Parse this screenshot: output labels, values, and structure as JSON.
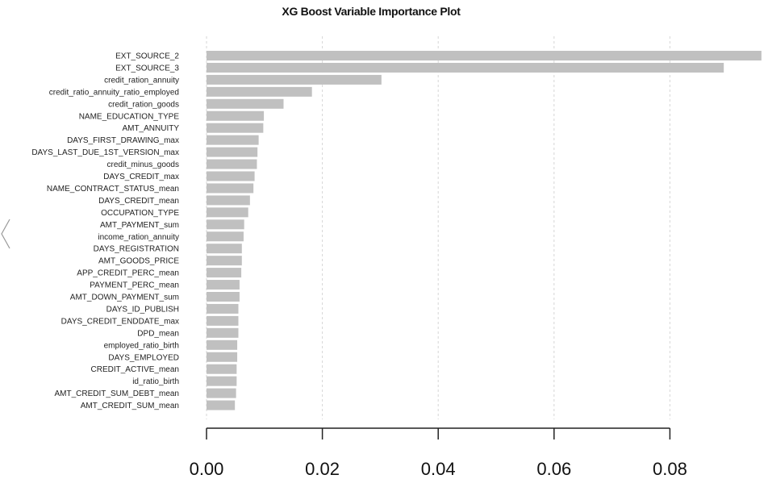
{
  "chart_data": {
    "type": "bar",
    "orientation": "horizontal",
    "title": "XG Boost Variable  Importance Plot",
    "xlabel": "",
    "ylabel": "",
    "xlim": [
      0,
      0.096
    ],
    "x_ticks": [
      "0.00",
      "0.02",
      "0.04",
      "0.06",
      "0.08"
    ],
    "grid": true,
    "bar_color": "#c0c0c0",
    "categories": [
      "EXT_SOURCE_2",
      "EXT_SOURCE_3",
      "credit_ration_annuity",
      "credit_ratio_annuity_ratio_employed",
      "credit_ration_goods",
      "NAME_EDUCATION_TYPE",
      "AMT_ANNUITY",
      "DAYS_FIRST_DRAWING_max",
      "DAYS_LAST_DUE_1ST_VERSION_max",
      "credit_minus_goods",
      "DAYS_CREDIT_max",
      "NAME_CONTRACT_STATUS_mean",
      "DAYS_CREDIT_mean",
      "OCCUPATION_TYPE",
      "AMT_PAYMENT_sum",
      "income_ration_annuity",
      "DAYS_REGISTRATION",
      "AMT_GOODS_PRICE",
      "APP_CREDIT_PERC_mean",
      "PAYMENT_PERC_mean",
      "AMT_DOWN_PAYMENT_sum",
      "DAYS_ID_PUBLISH",
      "DAYS_CREDIT_ENDDATE_max",
      "DPD_mean",
      "employed_ratio_birth",
      "DAYS_EMPLOYED",
      "CREDIT_ACTIVE_mean",
      "id_ratio_birth",
      "AMT_CREDIT_SUM_DEBT_mean",
      "AMT_CREDIT_SUM_mean"
    ],
    "values": [
      0.0958,
      0.0893,
      0.0302,
      0.0182,
      0.0133,
      0.0099,
      0.0098,
      0.009,
      0.0088,
      0.0087,
      0.0083,
      0.0081,
      0.0075,
      0.0072,
      0.0065,
      0.0064,
      0.0061,
      0.0061,
      0.006,
      0.0057,
      0.0057,
      0.0055,
      0.0055,
      0.0055,
      0.0053,
      0.0053,
      0.0052,
      0.0052,
      0.0051,
      0.0049
    ]
  }
}
